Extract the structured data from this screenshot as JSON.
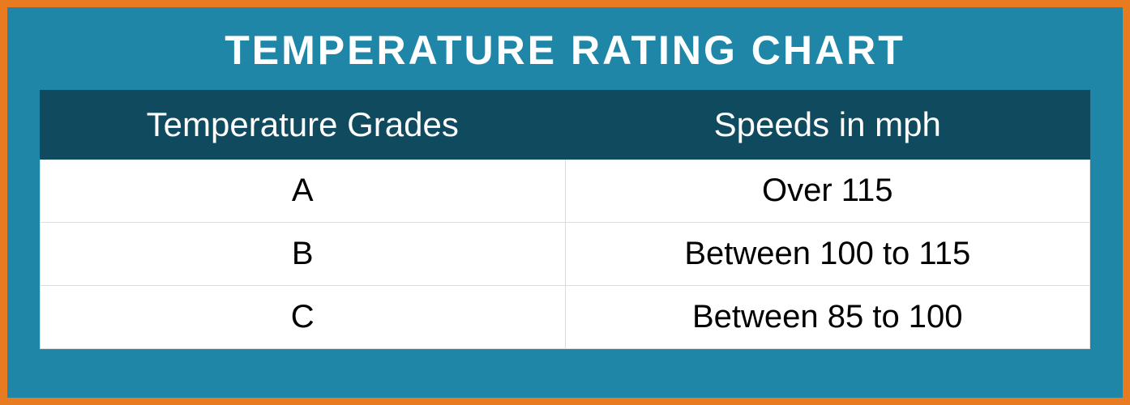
{
  "chart": {
    "type": "table",
    "title": "TEMPERATURE RATING CHART",
    "title_fontsize": 50,
    "title_color": "#ffffff",
    "border_color": "#e87b1f",
    "border_width": 9,
    "background_color": "#1f86a8",
    "header_background": "#104a5e",
    "header_text_color": "#ffffff",
    "header_fontsize": 42,
    "cell_background": "#ffffff",
    "cell_text_color": "#000000",
    "cell_fontsize": 40,
    "grid_color": "#d7dde0",
    "columns": [
      "Temperature Grades",
      "Speeds in mph"
    ],
    "rows": [
      [
        "A",
        "Over 115"
      ],
      [
        "B",
        "Between 100 to 115"
      ],
      [
        "C",
        "Between 85 to 100"
      ]
    ]
  }
}
